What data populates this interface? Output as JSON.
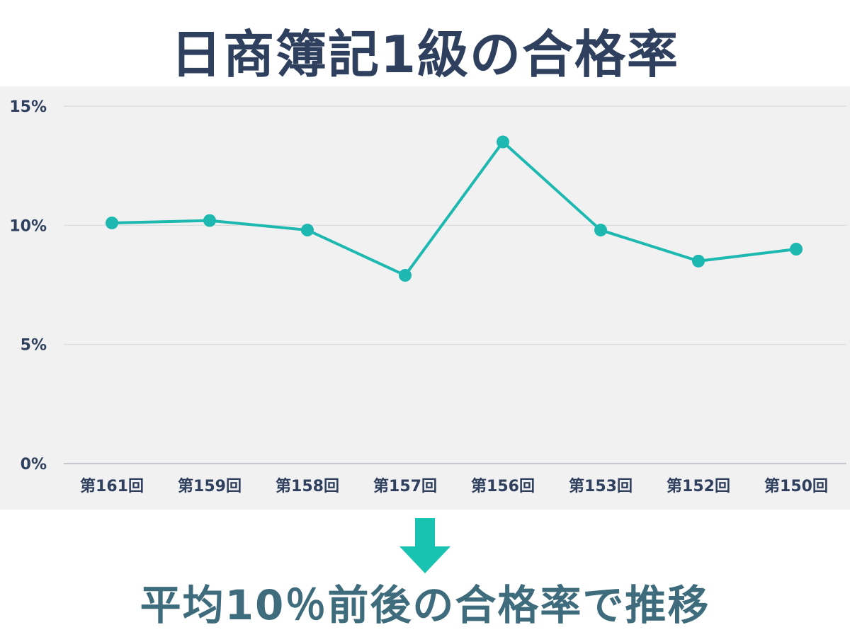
{
  "title": "日商簿記1級の合格率",
  "subtitle": "平均10％前後の合格率で推移",
  "colors": {
    "line": "#1db8b0",
    "title": "#2f3f5e",
    "subtitle": "#3f6c7d",
    "arrow": "#18c3b2",
    "grid": "#d7d9dc",
    "panel": "#f1f1f2"
  },
  "chart_data": {
    "type": "line",
    "categories": [
      "第161回",
      "第159回",
      "第158回",
      "第157回",
      "第156回",
      "第153回",
      "第152回",
      "第150回"
    ],
    "values": [
      10.1,
      10.2,
      9.8,
      7.9,
      13.5,
      9.8,
      8.5,
      9.0
    ],
    "ylim": [
      0,
      15
    ],
    "yticks": [
      0,
      5,
      10,
      15
    ],
    "ytick_labels": [
      "0%",
      "5%",
      "10%",
      "15%"
    ],
    "grid": true,
    "xlabel": "",
    "ylabel": ""
  }
}
